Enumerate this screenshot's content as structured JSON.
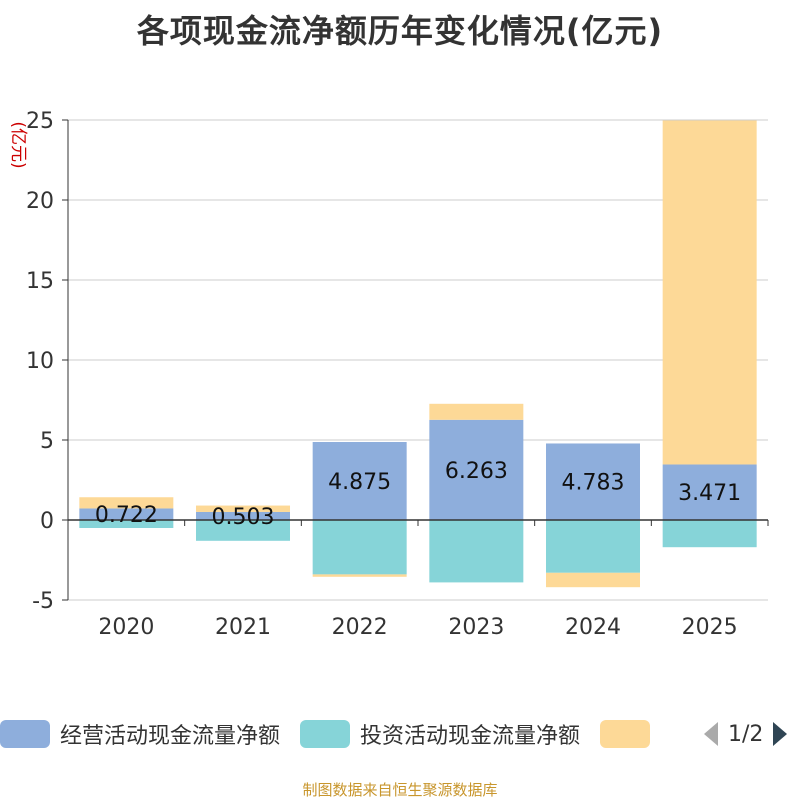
{
  "title": "各项现金流净额历年变化情况(亿元)",
  "footer": "制图数据来自恒生聚源数据库",
  "legend": {
    "items": [
      {
        "name": "经营活动现金流量净额",
        "color": "#8eaedc"
      },
      {
        "name": "投资活动现金流量净额",
        "color": "#86d4d8"
      },
      {
        "name": "",
        "color": "#fdd997"
      }
    ],
    "page": "1/2"
  },
  "chart_data": {
    "type": "bar",
    "stacked": true,
    "title": "各项现金流净额历年变化情况(亿元)",
    "ylabel": "(亿元)",
    "ylim": [
      -5,
      25
    ],
    "yticks": [
      -5,
      0,
      5,
      10,
      15,
      20,
      25
    ],
    "categories": [
      "2020",
      "2021",
      "2022",
      "2023",
      "2024",
      "2025"
    ],
    "series": [
      {
        "name": "经营活动现金流量净额",
        "color": "#8eaedc",
        "values": [
          0.722,
          0.503,
          4.875,
          6.263,
          4.783,
          3.471
        ],
        "labels": [
          "0.722",
          "0.503",
          "4.875",
          "6.263",
          "4.783",
          "3.471"
        ]
      },
      {
        "name": "投资活动现金流量净额",
        "color": "#86d4d8",
        "values": [
          -0.5,
          -1.3,
          -3.4,
          -3.9,
          -3.3,
          -1.7
        ]
      },
      {
        "name": "",
        "color": "#fdd997",
        "values": [
          0.7,
          0.4,
          -0.15,
          1.0,
          -0.9,
          21.5
        ]
      }
    ]
  }
}
